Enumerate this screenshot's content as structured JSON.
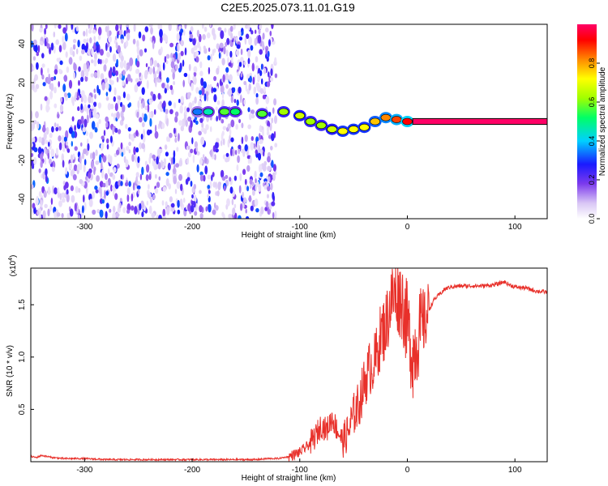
{
  "title": "C2E5.2025.073.11.01.G19",
  "colors": {
    "line": "#e8302a",
    "axis": "#000000",
    "band_outline": "#000000",
    "band_fill": "#e0213a",
    "background": "#ffffff"
  },
  "chart_data": [
    {
      "type": "heatmap",
      "xlabel": "Height of straight line (km)",
      "ylabel": "Frequency (Hz)",
      "xlim": [
        -350,
        130
      ],
      "ylim": [
        -50,
        50
      ],
      "xticks": [
        -300,
        -200,
        -100,
        0,
        100
      ],
      "yticks": [
        -40,
        -20,
        0,
        20,
        40
      ],
      "colorbar": {
        "label": "Normalized spectral amplitude",
        "range": [
          0.0,
          1.0
        ],
        "ticks": [
          "0.0",
          "0.2",
          "0.4",
          "0.6",
          "0.8"
        ],
        "colormap": [
          "#ffffff",
          "#d9c6f5",
          "#7c3aed",
          "#1a1aff",
          "#00d0ff",
          "#00ff66",
          "#a0ff00",
          "#ffff00",
          "#ff8800",
          "#ff0000",
          "#ff0066"
        ]
      },
      "noise_region_x": [
        -350,
        -122
      ],
      "ridge": [
        {
          "x": -195,
          "y": 5,
          "amp": 0.35
        },
        {
          "x": -185,
          "y": 5,
          "amp": 0.45
        },
        {
          "x": -170,
          "y": 5,
          "amp": 0.55
        },
        {
          "x": -160,
          "y": 5,
          "amp": 0.5
        },
        {
          "x": -135,
          "y": 4,
          "amp": 0.55
        },
        {
          "x": -115,
          "y": 5,
          "amp": 0.6
        },
        {
          "x": -100,
          "y": 3,
          "amp": 0.65
        },
        {
          "x": -90,
          "y": 0,
          "amp": 0.6
        },
        {
          "x": -80,
          "y": -2,
          "amp": 0.6
        },
        {
          "x": -70,
          "y": -4,
          "amp": 0.65
        },
        {
          "x": -60,
          "y": -5,
          "amp": 0.7
        },
        {
          "x": -50,
          "y": -4,
          "amp": 0.7
        },
        {
          "x": -40,
          "y": -3,
          "amp": 0.7
        },
        {
          "x": -30,
          "y": 0,
          "amp": 0.75
        },
        {
          "x": -20,
          "y": 2,
          "amp": 0.8
        },
        {
          "x": -10,
          "y": 1,
          "amp": 0.85
        },
        {
          "x": 0,
          "y": 0,
          "amp": 0.9
        }
      ],
      "band": {
        "x_start": 5,
        "x_end": 130,
        "y_low": -1.5,
        "y_high": 1.5,
        "amp": 1.0
      }
    },
    {
      "type": "line",
      "xlabel": "Height of straight line (km)",
      "ylabel": "SNR (10 * v/v)",
      "multiplier_label": "(x10",
      "multiplier_exp": "4",
      "xlim": [
        -350,
        130
      ],
      "ylim": [
        0,
        1.85
      ],
      "xticks": [
        -300,
        -200,
        -100,
        0,
        100
      ],
      "yticks": [
        0.5,
        1.0,
        1.5
      ],
      "ytick_labels": [
        "0.5",
        "1.0",
        "1.5"
      ],
      "series": [
        {
          "x": [
            -350,
            -345,
            -340,
            -330,
            -320,
            -300,
            -280,
            -260,
            -240,
            -220,
            -200,
            -180,
            -160,
            -140,
            -130,
            -120,
            -110,
            -100,
            -95,
            -90,
            -85,
            -80,
            -75,
            -70,
            -65,
            -60,
            -55,
            -50,
            -45,
            -40,
            -35,
            -30,
            -25,
            -20,
            -15,
            -10,
            -5,
            0,
            5,
            10,
            15,
            20,
            25,
            30,
            35,
            40,
            50,
            60,
            70,
            80,
            85,
            90,
            95,
            100,
            110,
            120,
            130
          ],
          "y": [
            0.05,
            0.04,
            0.06,
            0.04,
            0.03,
            0.03,
            0.02,
            0.02,
            0.02,
            0.02,
            0.02,
            0.02,
            0.02,
            0.02,
            0.03,
            0.03,
            0.05,
            0.09,
            0.13,
            0.18,
            0.25,
            0.35,
            0.3,
            0.42,
            0.3,
            0.2,
            0.28,
            0.45,
            0.55,
            0.75,
            0.9,
            0.95,
            1.2,
            1.3,
            1.55,
            1.6,
            1.55,
            1.3,
            1.0,
            1.2,
            1.3,
            1.45,
            1.55,
            1.6,
            1.65,
            1.67,
            1.68,
            1.68,
            1.68,
            1.69,
            1.7,
            1.72,
            1.69,
            1.67,
            1.66,
            1.63,
            1.62
          ]
        }
      ]
    }
  ]
}
